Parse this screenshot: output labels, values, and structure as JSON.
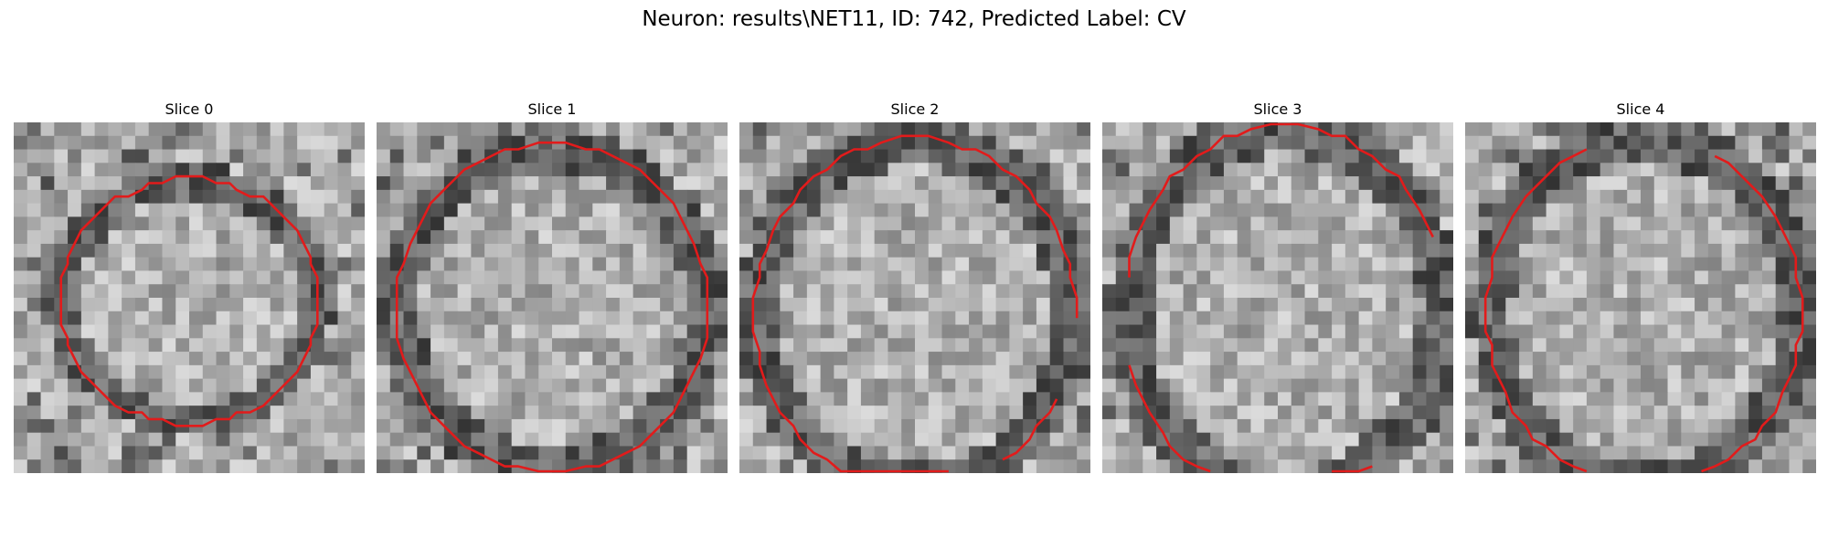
{
  "figure": {
    "title": "Neuron: results\\NET11, ID: 742, Predicted Label: CV"
  },
  "slices": [
    {
      "label": "Slice 0",
      "contour": "closed",
      "seed": 11
    },
    {
      "label": "Slice 1",
      "contour": "closed",
      "seed": 23
    },
    {
      "label": "Slice 2",
      "contour": "open-bottom-right",
      "seed": 37
    },
    {
      "label": "Slice 3",
      "contour": "open-sides",
      "seed": 41
    },
    {
      "label": "Slice 4",
      "contour": "open-top-right",
      "seed": 59
    }
  ],
  "colors": {
    "contour": "#e21b1b",
    "background": "#ffffff"
  }
}
